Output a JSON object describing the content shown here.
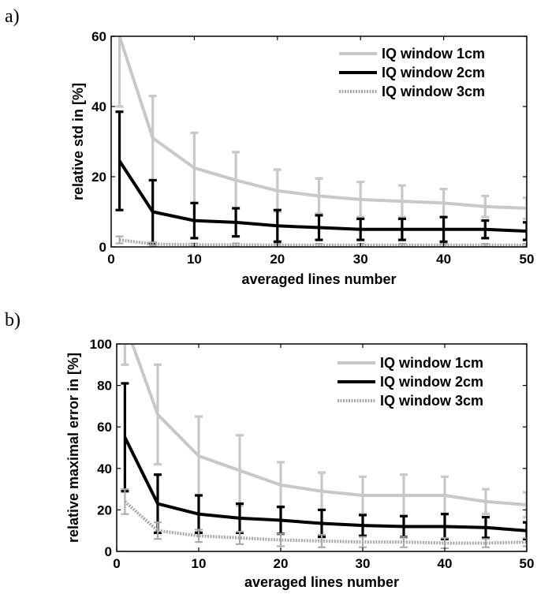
{
  "chart_data": [
    {
      "panel_label": "a)",
      "type": "line",
      "xlabel": "averaged lines number",
      "ylabel": "relative std in [%]",
      "xlim": [
        0,
        50
      ],
      "ylim": [
        0,
        60
      ],
      "xticks": [
        "0",
        "10",
        "20",
        "30",
        "40",
        "50"
      ],
      "yticks": [
        "0",
        "20",
        "40",
        "60"
      ],
      "legend_position": "top-right",
      "grid": false,
      "x": [
        1,
        5,
        10,
        15,
        20,
        25,
        30,
        35,
        40,
        45,
        50
      ],
      "series": [
        {
          "name": "IQ window 1cm",
          "color": "#c8c8c8",
          "style": "solid",
          "values": [
            60,
            31,
            22.5,
            19,
            16,
            14.5,
            13.5,
            13,
            12.5,
            11.5,
            11
          ],
          "err": [
            20,
            12,
            10,
            8,
            6,
            5,
            5,
            4.5,
            4,
            3,
            3
          ]
        },
        {
          "name": "IQ window 2cm",
          "color": "#000000",
          "style": "solid",
          "values": [
            24.5,
            10,
            7.5,
            7,
            6,
            5.5,
            5,
            5,
            5,
            5,
            4.5
          ],
          "err": [
            14,
            9,
            5,
            4,
            4.5,
            3.5,
            3,
            3,
            3.5,
            2.5,
            2.5
          ]
        },
        {
          "name": "IQ window 3cm",
          "color": "#a8a8a8",
          "style": "dotted",
          "values": [
            2,
            0.8,
            0.6,
            0.6,
            0.5,
            0.5,
            0.5,
            0.5,
            0.5,
            0.5,
            0.5
          ],
          "err": [
            1,
            0.5,
            0.4,
            0.4,
            0.4,
            0.4,
            0.4,
            0.4,
            0.4,
            0.4,
            0.4
          ]
        }
      ]
    },
    {
      "panel_label": "b)",
      "type": "line",
      "xlabel": "averaged lines number",
      "ylabel": "relative maximal error in [%]",
      "xlim": [
        0,
        50
      ],
      "ylim": [
        0,
        100
      ],
      "xticks": [
        "0",
        "10",
        "20",
        "30",
        "40",
        "50"
      ],
      "yticks": [
        "0",
        "20",
        "40",
        "60",
        "80",
        "100"
      ],
      "legend_position": "top-right",
      "grid": false,
      "x": [
        1,
        5,
        10,
        15,
        20,
        25,
        30,
        35,
        40,
        45,
        50
      ],
      "series": [
        {
          "name": "IQ window 1cm",
          "color": "#c8c8c8",
          "style": "solid",
          "values": [
            110,
            66,
            46,
            39,
            32,
            29,
            27,
            27,
            27,
            24,
            22.5
          ],
          "err": [
            20,
            24,
            19,
            17,
            11,
            9,
            9,
            10,
            9,
            6,
            6
          ]
        },
        {
          "name": "IQ window 2cm",
          "color": "#000000",
          "style": "solid",
          "values": [
            55,
            23,
            18,
            16,
            15,
            13.5,
            12.5,
            12,
            12,
            11.5,
            10
          ],
          "err": [
            26,
            14,
            9,
            7,
            6.5,
            6.5,
            5,
            5,
            6,
            5,
            4
          ]
        },
        {
          "name": "IQ window 3cm",
          "color": "#a8a8a8",
          "style": "dotted",
          "values": [
            24,
            10,
            7.5,
            6.5,
            5.5,
            5,
            4.5,
            4.5,
            4,
            4,
            4.5
          ],
          "err": [
            6,
            4,
            3,
            3,
            3,
            3,
            2.5,
            2.5,
            2.5,
            2,
            2
          ]
        }
      ]
    }
  ]
}
